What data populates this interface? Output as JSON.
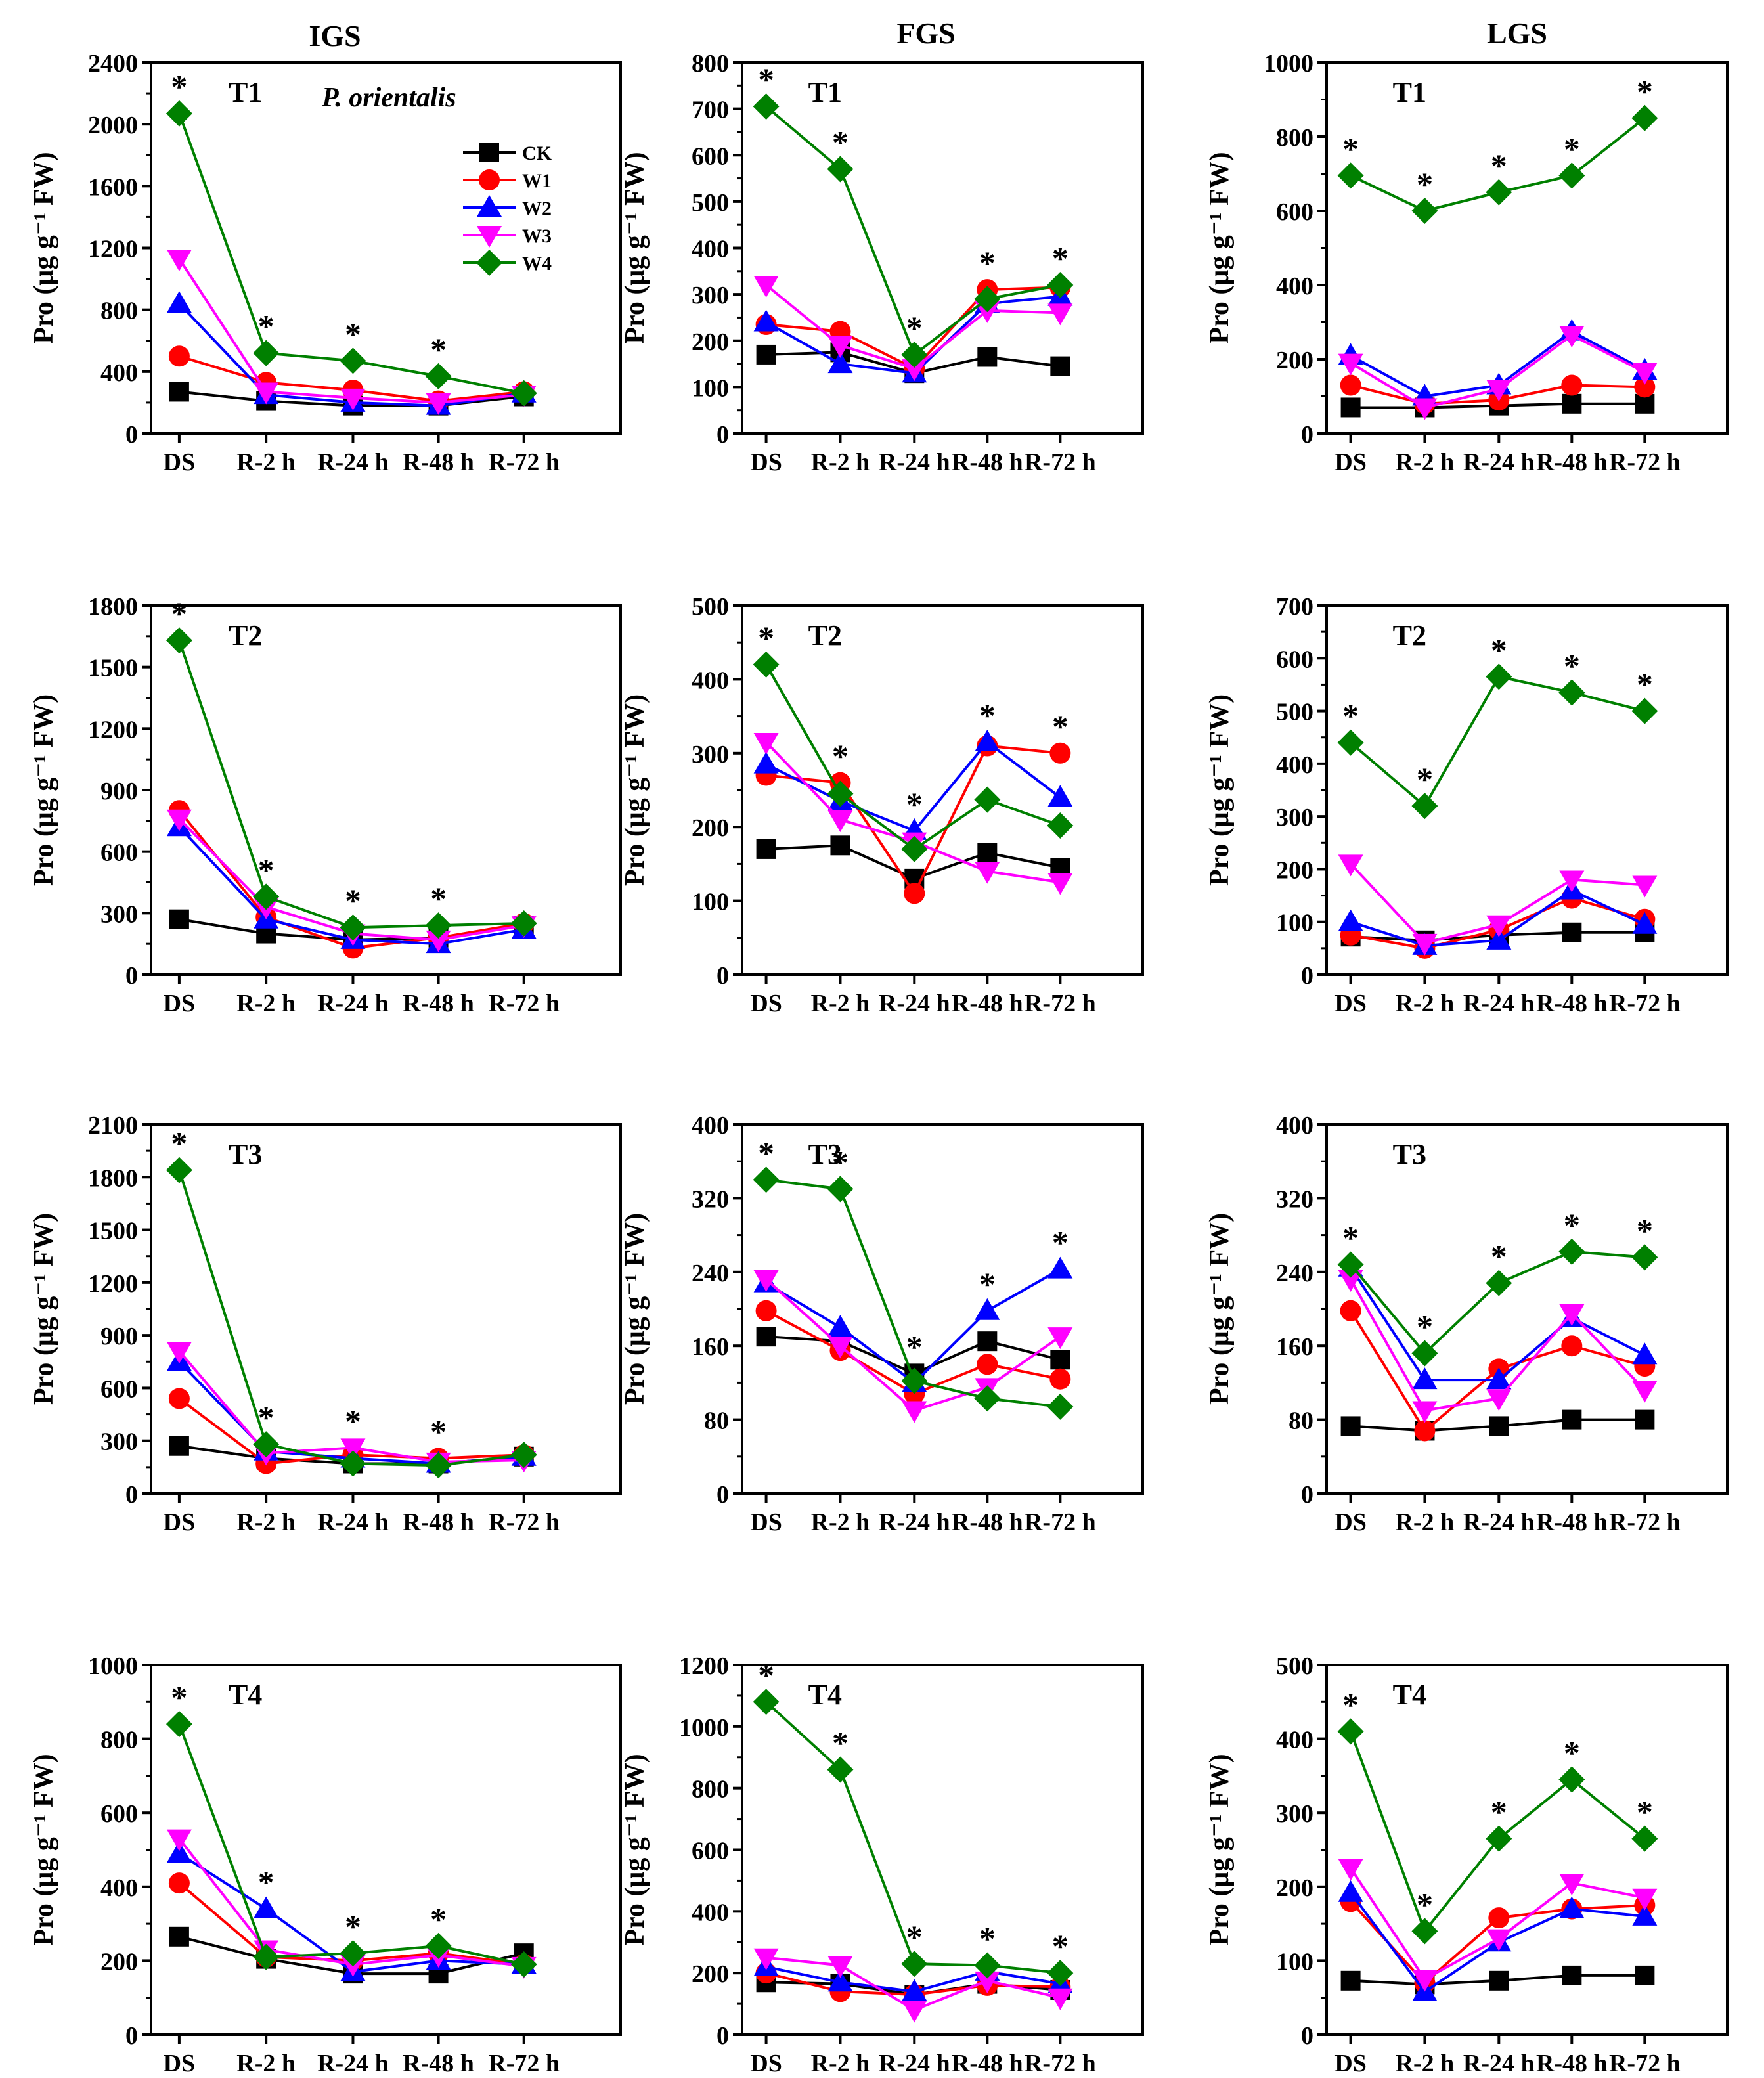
{
  "figure": {
    "column_titles": [
      "IGS",
      "FGS",
      "LGS"
    ],
    "species_label": "P. orientalis",
    "ylabel": "Pro (μg g⁻¹ FW)",
    "categories": [
      "DS",
      "R-2 h",
      "R-24 h",
      "R-48 h",
      "R-72 h"
    ],
    "legend": [
      "CK",
      "W1",
      "W2",
      "W3",
      "W4"
    ],
    "series_colors": [
      "#000000",
      "#ff0000",
      "#0000ff",
      "#ff00ff",
      "#008000"
    ],
    "series_markers": [
      "square",
      "circle",
      "triangle-up",
      "triangle-down",
      "diamond"
    ],
    "significance_symbol": "*"
  },
  "chart_data": [
    {
      "type": "line",
      "column": "IGS",
      "title": "T1",
      "ylim": [
        0,
        2400
      ],
      "yticks": [
        0,
        400,
        800,
        1200,
        1600,
        2000,
        2400
      ],
      "categories": [
        "DS",
        "R-2 h",
        "R-24 h",
        "R-48 h",
        "R-72 h"
      ],
      "significance": [
        0,
        1,
        2,
        3
      ],
      "series": [
        {
          "name": "CK",
          "values": [
            270,
            210,
            180,
            180,
            240
          ]
        },
        {
          "name": "W1",
          "values": [
            500,
            330,
            280,
            210,
            270
          ]
        },
        {
          "name": "W2",
          "values": [
            840,
            250,
            200,
            180,
            260
          ]
        },
        {
          "name": "W3",
          "values": [
            1130,
            270,
            230,
            200,
            250
          ]
        },
        {
          "name": "W4",
          "values": [
            2070,
            520,
            470,
            370,
            260
          ]
        }
      ]
    },
    {
      "type": "line",
      "column": "FGS",
      "title": "T1",
      "ylim": [
        0,
        800
      ],
      "yticks": [
        0,
        100,
        200,
        300,
        400,
        500,
        600,
        700,
        800
      ],
      "categories": [
        "DS",
        "R-2 h",
        "R-24 h",
        "R-48 h",
        "R-72 h"
      ],
      "significance": [
        0,
        1,
        2,
        3,
        4
      ],
      "series": [
        {
          "name": "CK",
          "values": [
            170,
            175,
            130,
            165,
            145
          ]
        },
        {
          "name": "W1",
          "values": [
            235,
            220,
            140,
            310,
            315
          ]
        },
        {
          "name": "W2",
          "values": [
            240,
            150,
            130,
            280,
            295
          ]
        },
        {
          "name": "W3",
          "values": [
            320,
            190,
            140,
            265,
            260
          ]
        },
        {
          "name": "W4",
          "values": [
            705,
            570,
            170,
            290,
            320
          ]
        }
      ]
    },
    {
      "type": "line",
      "column": "LGS",
      "title": "T1",
      "ylim": [
        0,
        1000
      ],
      "yticks": [
        0,
        200,
        400,
        600,
        800,
        1000
      ],
      "categories": [
        "DS",
        "R-2 h",
        "R-24 h",
        "R-48 h",
        "R-72 h"
      ],
      "significance": [
        0,
        1,
        2,
        3,
        4
      ],
      "series": [
        {
          "name": "CK",
          "values": [
            70,
            70,
            75,
            80,
            80
          ]
        },
        {
          "name": "W1",
          "values": [
            130,
            80,
            90,
            130,
            125
          ]
        },
        {
          "name": "W2",
          "values": [
            210,
            100,
            130,
            275,
            170
          ]
        },
        {
          "name": "W3",
          "values": [
            190,
            70,
            120,
            265,
            165
          ]
        },
        {
          "name": "W4",
          "values": [
            695,
            600,
            650,
            695,
            850
          ]
        }
      ]
    },
    {
      "type": "line",
      "column": "IGS",
      "title": "T2",
      "ylim": [
        0,
        1800
      ],
      "yticks": [
        0,
        300,
        600,
        900,
        1200,
        1500,
        1800
      ],
      "categories": [
        "DS",
        "R-2 h",
        "R-24 h",
        "R-48 h",
        "R-72 h"
      ],
      "significance": [
        0,
        1,
        2,
        3
      ],
      "series": [
        {
          "name": "CK",
          "values": [
            270,
            200,
            170,
            180,
            240
          ]
        },
        {
          "name": "W1",
          "values": [
            800,
            280,
            130,
            180,
            250
          ]
        },
        {
          "name": "W2",
          "values": [
            720,
            270,
            170,
            150,
            220
          ]
        },
        {
          "name": "W3",
          "values": [
            760,
            330,
            200,
            170,
            240
          ]
        },
        {
          "name": "W4",
          "values": [
            1630,
            380,
            230,
            240,
            250
          ]
        }
      ]
    },
    {
      "type": "line",
      "column": "FGS",
      "title": "T2",
      "ylim": [
        0,
        500
      ],
      "yticks": [
        0,
        100,
        200,
        300,
        400,
        500
      ],
      "categories": [
        "DS",
        "R-2 h",
        "R-24 h",
        "R-48 h",
        "R-72 h"
      ],
      "significance": [
        0,
        1,
        2,
        3,
        4
      ],
      "series": [
        {
          "name": "CK",
          "values": [
            170,
            175,
            130,
            165,
            145
          ]
        },
        {
          "name": "W1",
          "values": [
            270,
            260,
            110,
            310,
            300
          ]
        },
        {
          "name": "W2",
          "values": [
            285,
            235,
            195,
            315,
            240
          ]
        },
        {
          "name": "W3",
          "values": [
            315,
            210,
            180,
            140,
            125
          ]
        },
        {
          "name": "W4",
          "values": [
            420,
            245,
            170,
            237,
            202
          ]
        }
      ]
    },
    {
      "type": "line",
      "column": "LGS",
      "title": "T2",
      "ylim": [
        0,
        700
      ],
      "yticks": [
        0,
        100,
        200,
        300,
        400,
        500,
        600,
        700
      ],
      "categories": [
        "DS",
        "R-2 h",
        "R-24 h",
        "R-48 h",
        "R-72 h"
      ],
      "significance": [
        0,
        1,
        2,
        3,
        4
      ],
      "series": [
        {
          "name": "CK",
          "values": [
            72,
            65,
            75,
            80,
            80
          ]
        },
        {
          "name": "W1",
          "values": [
            75,
            50,
            85,
            145,
            105
          ]
        },
        {
          "name": "W2",
          "values": [
            100,
            55,
            65,
            160,
            95
          ]
        },
        {
          "name": "W3",
          "values": [
            210,
            60,
            95,
            180,
            170
          ]
        },
        {
          "name": "W4",
          "values": [
            440,
            320,
            565,
            535,
            500
          ]
        }
      ]
    },
    {
      "type": "line",
      "column": "IGS",
      "title": "T3",
      "ylim": [
        0,
        2100
      ],
      "yticks": [
        0,
        300,
        600,
        900,
        1200,
        1500,
        1800,
        2100
      ],
      "categories": [
        "DS",
        "R-2 h",
        "R-24 h",
        "R-48 h",
        "R-72 h"
      ],
      "significance": [
        0,
        1,
        2,
        3
      ],
      "series": [
        {
          "name": "CK",
          "values": [
            270,
            200,
            170,
            170,
            210
          ]
        },
        {
          "name": "W1",
          "values": [
            540,
            170,
            220,
            200,
            220
          ]
        },
        {
          "name": "W2",
          "values": [
            750,
            240,
            200,
            170,
            210
          ]
        },
        {
          "name": "W3",
          "values": [
            810,
            230,
            260,
            180,
            190
          ]
        },
        {
          "name": "W4",
          "values": [
            1840,
            280,
            170,
            160,
            220
          ]
        }
      ]
    },
    {
      "type": "line",
      "column": "FGS",
      "title": "T3",
      "ylim": [
        0,
        400
      ],
      "yticks": [
        0,
        80,
        160,
        240,
        320,
        400
      ],
      "categories": [
        "DS",
        "R-2 h",
        "R-24 h",
        "R-48 h",
        "R-72 h"
      ],
      "significance": [
        0,
        1,
        2,
        3,
        4
      ],
      "series": [
        {
          "name": "CK",
          "values": [
            170,
            165,
            130,
            165,
            145
          ]
        },
        {
          "name": "W1",
          "values": [
            198,
            155,
            108,
            140,
            124
          ]
        },
        {
          "name": "W2",
          "values": [
            228,
            180,
            120,
            198,
            243
          ]
        },
        {
          "name": "W3",
          "values": [
            232,
            160,
            90,
            115,
            170
          ]
        },
        {
          "name": "W4",
          "values": [
            340,
            330,
            122,
            103,
            94
          ]
        }
      ]
    },
    {
      "type": "line",
      "column": "LGS",
      "title": "T3",
      "ylim": [
        0,
        400
      ],
      "yticks": [
        0,
        80,
        160,
        240,
        320,
        400
      ],
      "categories": [
        "DS",
        "R-2 h",
        "R-24 h",
        "R-48 h",
        "R-72 h"
      ],
      "significance": [
        0,
        1,
        2,
        3,
        4
      ],
      "series": [
        {
          "name": "CK",
          "values": [
            73,
            68,
            73,
            80,
            80
          ]
        },
        {
          "name": "W1",
          "values": [
            198,
            68,
            135,
            160,
            138
          ]
        },
        {
          "name": "W2",
          "values": [
            245,
            123,
            123,
            190,
            150
          ]
        },
        {
          "name": "W3",
          "values": [
            232,
            90,
            103,
            195,
            112
          ]
        },
        {
          "name": "W4",
          "values": [
            248,
            152,
            228,
            262,
            256
          ]
        }
      ]
    },
    {
      "type": "line",
      "column": "IGS",
      "title": "T4",
      "ylim": [
        0,
        1000
      ],
      "yticks": [
        0,
        200,
        400,
        600,
        800,
        1000
      ],
      "categories": [
        "DS",
        "R-2 h",
        "R-24 h",
        "R-48 h",
        "R-72 h"
      ],
      "significance": [
        0,
        1,
        2,
        3
      ],
      "series": [
        {
          "name": "CK",
          "values": [
            265,
            205,
            165,
            165,
            220
          ]
        },
        {
          "name": "W1",
          "values": [
            410,
            210,
            200,
            220,
            190
          ]
        },
        {
          "name": "W2",
          "values": [
            490,
            340,
            170,
            200,
            190
          ]
        },
        {
          "name": "W3",
          "values": [
            530,
            230,
            190,
            215,
            185
          ]
        },
        {
          "name": "W4",
          "values": [
            840,
            210,
            220,
            240,
            190
          ]
        }
      ]
    },
    {
      "type": "line",
      "column": "FGS",
      "title": "T4",
      "ylim": [
        0,
        1200
      ],
      "yticks": [
        0,
        200,
        400,
        600,
        800,
        1000,
        1200
      ],
      "categories": [
        "DS",
        "R-2 h",
        "R-24 h",
        "R-48 h",
        "R-72 h"
      ],
      "significance": [
        0,
        1,
        2,
        3,
        4
      ],
      "series": [
        {
          "name": "CK",
          "values": [
            170,
            165,
            130,
            165,
            145
          ]
        },
        {
          "name": "W1",
          "values": [
            200,
            140,
            130,
            160,
            155
          ]
        },
        {
          "name": "W2",
          "values": [
            220,
            170,
            140,
            205,
            165
          ]
        },
        {
          "name": "W3",
          "values": [
            250,
            225,
            80,
            175,
            120
          ]
        },
        {
          "name": "W4",
          "values": [
            1080,
            860,
            230,
            225,
            200
          ]
        }
      ]
    },
    {
      "type": "line",
      "column": "LGS",
      "title": "T4",
      "ylim": [
        0,
        500
      ],
      "yticks": [
        0,
        100,
        200,
        300,
        400,
        500
      ],
      "categories": [
        "DS",
        "R-2 h",
        "R-24 h",
        "R-48 h",
        "R-72 h"
      ],
      "significance": [
        0,
        1,
        2,
        3,
        4
      ],
      "series": [
        {
          "name": "CK",
          "values": [
            73,
            68,
            73,
            80,
            80
          ]
        },
        {
          "name": "W1",
          "values": [
            180,
            70,
            158,
            170,
            175
          ]
        },
        {
          "name": "W2",
          "values": [
            192,
            58,
            125,
            170,
            160
          ]
        },
        {
          "name": "W3",
          "values": [
            225,
            75,
            130,
            205,
            185
          ]
        },
        {
          "name": "W4",
          "values": [
            410,
            140,
            265,
            345,
            265
          ]
        }
      ]
    }
  ]
}
